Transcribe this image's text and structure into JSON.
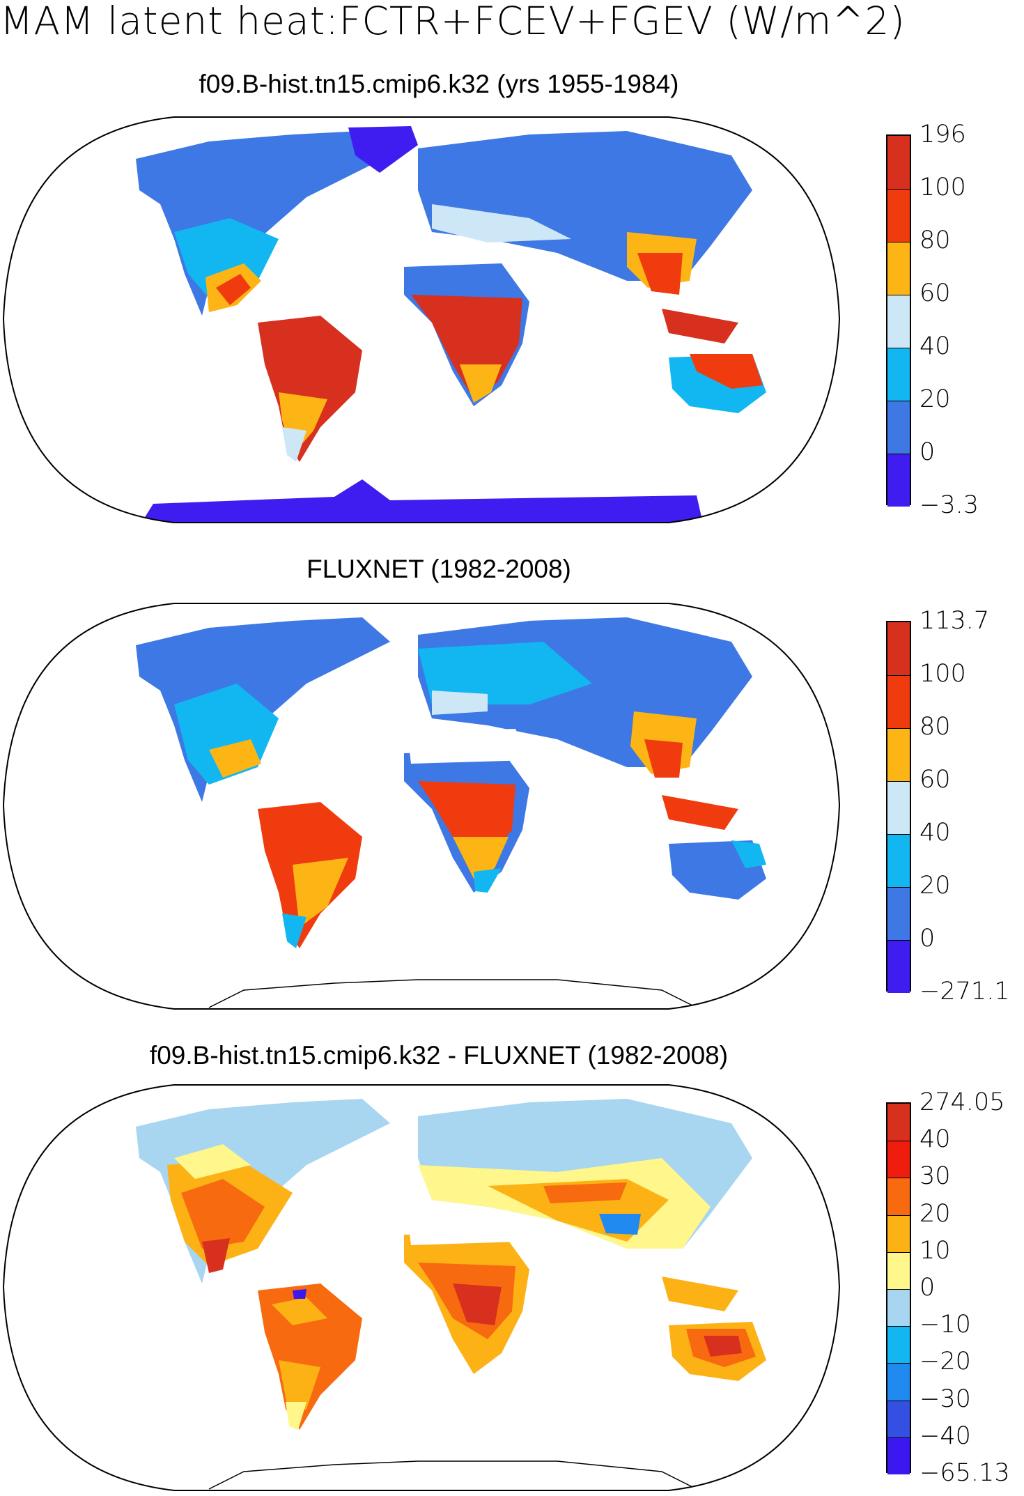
{
  "title": "MAM latent heat:FCTR+FCEV+FGEV (W/m^2)",
  "panels": [
    {
      "title": "f09.B-hist.tn15.cmip6.k32 (yrs 1955-1984)",
      "colorbar": {
        "labels": [
          "196",
          "100",
          "80",
          "60",
          "40",
          "20",
          "0",
          "-3.3"
        ],
        "colors": [
          "#d7301f",
          "#f03b0e",
          "#fdb515",
          "#cde7f6",
          "#12b7f1",
          "#3d78e4",
          "#3f1cf0"
        ]
      }
    },
    {
      "title": "FLUXNET (1982-2008)",
      "colorbar": {
        "labels": [
          "113.7",
          "100",
          "80",
          "60",
          "40",
          "20",
          "0",
          "-271.1"
        ],
        "colors": [
          "#d7301f",
          "#f03b0e",
          "#fdb515",
          "#cde7f6",
          "#12b7f1",
          "#3d78e4",
          "#3f1cf0"
        ]
      }
    },
    {
      "title": "f09.B-hist.tn15.cmip6.k32 - FLUXNET (1982-2008)",
      "colorbar": {
        "labels": [
          "274.05",
          "40",
          "30",
          "20",
          "10",
          "0",
          "-10",
          "-20",
          "-30",
          "-40",
          "-65.13"
        ],
        "colors": [
          "#d7301f",
          "#f01d0f",
          "#f86a10",
          "#fcb215",
          "#fff68c",
          "#a8d5ef",
          "#12b7f1",
          "#208af1",
          "#3450e3",
          "#3c17ef"
        ]
      }
    }
  ]
}
